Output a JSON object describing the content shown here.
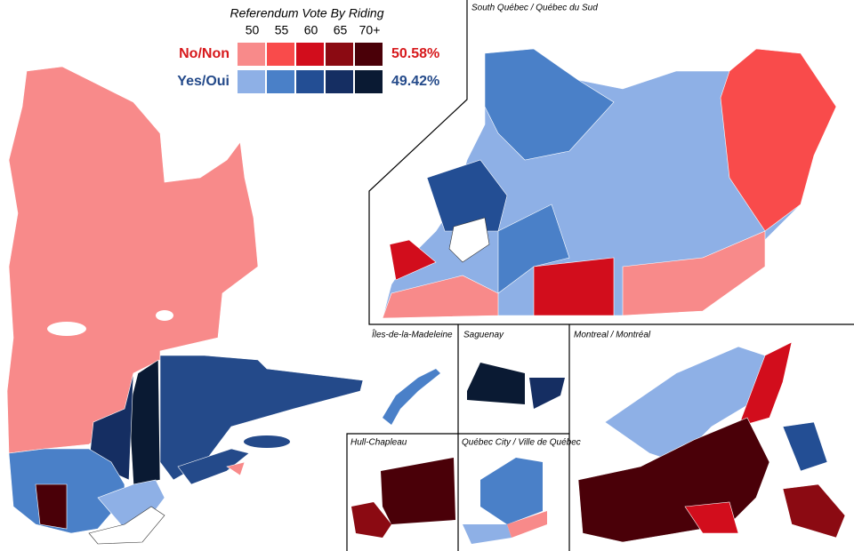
{
  "legend": {
    "title": "Referendum Vote By Riding",
    "thresholds": [
      "50",
      "55",
      "60",
      "65",
      "70+"
    ],
    "rows": [
      {
        "label": "No/Non",
        "label_color": "#d7191c",
        "colors": [
          "#f88a8a",
          "#f94b4b",
          "#d20d1c",
          "#8b0a12",
          "#4a0008"
        ],
        "result": "50.58%"
      },
      {
        "label": "Yes/Oui",
        "label_color": "#244a8a",
        "colors": [
          "#8eb0e6",
          "#4a80c8",
          "#234e94",
          "#152e62",
          "#0a1a33"
        ],
        "result": "49.42%"
      }
    ]
  },
  "insets": {
    "south": "South Québec / Québec du Sud",
    "iles": "Îles-de-la-Madeleine",
    "saguenay": "Saguenay",
    "hull": "Hull-Chapleau",
    "quebec_city": "Québec City / Ville de Québec",
    "montreal": "Montreal / Montréal"
  }
}
